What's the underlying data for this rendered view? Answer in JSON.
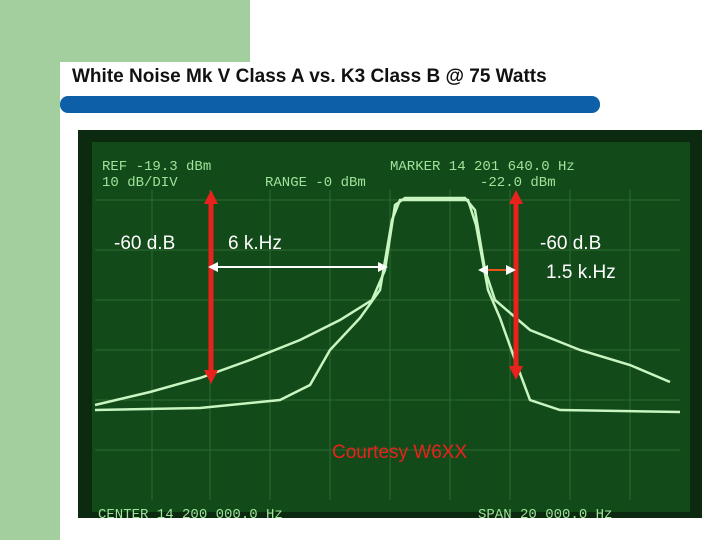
{
  "title": "White Noise Mk V Class A vs. K3 Class B @ 75 Watts",
  "screen": {
    "ref": "REF -19.3 dBm",
    "scale": "10 dB/DIV",
    "range": "RANGE -0 dBm",
    "marker": "MARKER 14 201 640.0 Hz",
    "marker_level": "-22.0 dBm",
    "center": "CENTER 14 200 000.0 Hz",
    "span": "SPAN 20 000.0 Hz"
  },
  "annotations": {
    "left_level": "-60 d.B",
    "bandwidth": "6 k.Hz",
    "right_level": "-60 d.B",
    "right_bandwidth": "1.5 k.Hz",
    "credit": "Courtesy W6XX"
  }
}
